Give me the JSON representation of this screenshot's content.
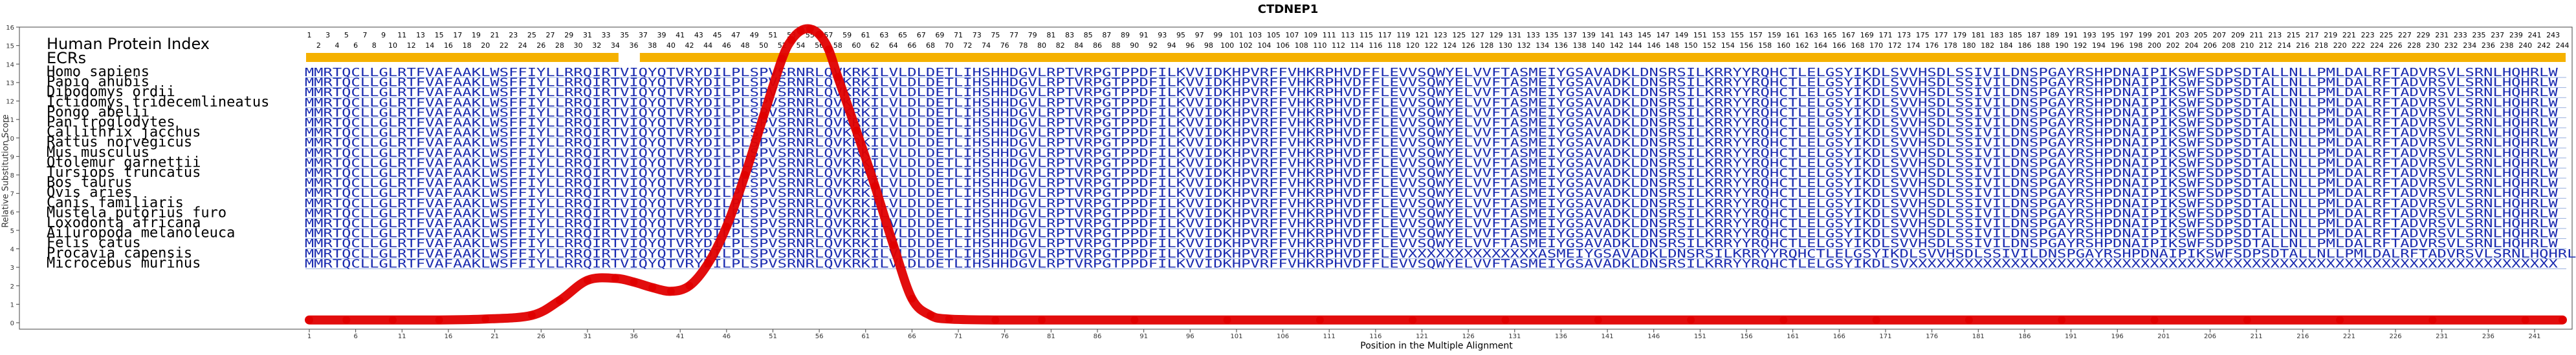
{
  "chart_data": {
    "type": "line",
    "title": "CTDNEP1",
    "xlabel": "Position in the Multiple Alignment",
    "ylabel": "Relative Substitution Score",
    "ylim": [
      0,
      16
    ],
    "xlim": [
      1,
      244
    ],
    "y_ticks": [
      0,
      1,
      2,
      3,
      4,
      5,
      6,
      7,
      8,
      9,
      10,
      11,
      12,
      13,
      14,
      15,
      16
    ],
    "x_ticks": [
      1,
      6,
      11,
      16,
      21,
      26,
      31,
      36,
      41,
      46,
      51,
      56,
      61,
      66,
      71,
      76,
      81,
      86,
      91,
      96,
      101,
      106,
      111,
      116,
      121,
      126,
      131,
      136,
      141,
      146,
      151,
      156,
      161,
      166,
      171,
      176,
      181,
      186,
      191,
      196,
      201,
      206,
      211,
      216,
      221,
      226,
      231,
      236,
      241
    ],
    "series": [
      {
        "x": [
          1,
          5,
          10,
          15,
          20,
          25,
          28,
          31,
          34,
          36,
          38,
          40,
          42,
          44,
          46,
          48,
          50,
          52,
          53,
          54,
          55,
          56,
          57,
          58,
          60,
          62,
          64,
          66,
          68,
          70,
          75,
          80,
          90,
          100,
          110,
          120,
          130,
          140,
          150,
          160,
          170,
          180,
          190,
          200,
          210,
          220,
          230,
          240,
          244
        ],
        "y": [
          0.15,
          0.15,
          0.15,
          0.15,
          0.2,
          0.4,
          1.2,
          2.3,
          2.4,
          2.2,
          1.9,
          1.7,
          2.0,
          3.2,
          5.2,
          8.0,
          11.2,
          14.3,
          15.3,
          15.8,
          15.9,
          15.6,
          14.8,
          13.3,
          10.4,
          7.4,
          4.2,
          1.3,
          0.4,
          0.2,
          0.15,
          0.15,
          0.15,
          0.15,
          0.15,
          0.15,
          0.15,
          0.15,
          0.15,
          0.15,
          0.15,
          0.15,
          0.15,
          0.15,
          0.15,
          0.15,
          0.15,
          0.15,
          0.15
        ]
      }
    ],
    "grid": false
  },
  "alignment": {
    "header_label": "Human Protein Index",
    "ecr_label": "ECRs",
    "human_index_start": 1,
    "human_index_end": 244,
    "ecr_regions": [
      [
        1,
        34
      ],
      [
        37,
        244
      ]
    ],
    "colors": {
      "sequence": "#1a2bb0",
      "curve": "#e00000",
      "ecr": "#f5b100",
      "separator": "#9ab0e0"
    },
    "species": [
      {
        "name": "Homo sapiens",
        "seq": "MMRTQCLLGLRTFVAFAAKLWSFFIYLLRRQIRTVIQYQTVRYDILPLSPVSRNRLQVKRKILVLDLDETLIHSHHDGVLRPTVRPGTPPDFILKVVIDKHPVRFFVHKRPHVDFFLEVVSQWYELVVFTASMEIYGSAVADKLDNSRSILKRRYYRQHCTLELGSYIKDLSVVHSDLSSIVILDNSPGAYRSHPDNAIPIKSWFSDPSDTALLNLLPMLDALRFTADVRSVLSRNLHQHRLW"
      },
      {
        "name": "Papio anubis",
        "seq": "MMRTQCLLGLRTFVAFAAKLWSFFIYLLRRQIRTVIQYQTVRYDILPLSPVSRNRLQVKRKILVLDLDETLIHSHHDGVLRPTVRPGTPPDFILKVVIDKHPVRFFVHKRPHVDFFLEVVSQWYELVVFTASMEIYGSAVADKLDNSRSILKRRYYRQHCTLELGSYIKDLSVVHSDLSSIVILDNSPGAYRSHPDNAIPIKSWFSDPSDTALLNLLPMLDALRFTADVRSVLSRNLHQHRLW"
      },
      {
        "name": "Dipodomys ordii",
        "seq": "MMRTQCLLGLRTFVAFAAKLWSFFIYLLRRQIRTVIQYQTVRYDILPLSPVSRNRLQVKRKILVLDLDETLIHSHHDGVLRPTVRPGTPPDFILKVVIDKHPVRFFVHKRPHVDFFLEVVSQWYELVVFTASMEIYGSAVADKLDNSRSILKRRYYRQHCTLELGSYIKDLSVVHSDLSSIVILDNSPGAYRSHPDNAIPIKSWFSDPSDTALLNLLPMLDALRFTADVRSVLSRNLHQHRLW"
      },
      {
        "name": "Ictidomys tridecemlineatus",
        "seq": "MMRTQCLLGLRTFVAFAAKLWSFFIYLLRRQIRTVIQYQTVRYDILPLSPVSRNRLQVKRKILVLDLDETLIHSHHDGVLRPTVRPGTPPDFILKVVIDKHPVRFFVHKRPHVDFFLEVVSQWYELVVFTASMEIYGSAVADKLDNSRSILKRRYYRQHCTLELGSYIKDLSVVHSDLSSIVILDNSPGAYRSHPDNAIPIKSWFSDPSDTALLNLLPMLDALRFTADVRSVLSRNLHQHRLW"
      },
      {
        "name": "Pongo abelii",
        "seq": "MMRTQCLLGLRTFVAFAAKLWSFFIYLLRRQIRTVIQYQTVRYDILPLSPVSRNRLQVKRKILVLDLDETLIHSHHDGVLRPTVRPGTPPDFILKVVIDKHPVRFFVHKRPHVDFFLEVVSQWYELVVFTASMEIYGSAVADKLDNSRSILKRRYYRQHCTLELGSYIKDLSVVHSDLSSIVILDNSPGAYRSHPDNAIPIKSWFSDPSDTALLNLLPMLDALRFTADVRSVLSRNLHQHRLW"
      },
      {
        "name": "Pan troglodytes",
        "seq": "MMRTQCLLGLRTFVAFAAKLWSFFIYLLRRQIRTVIQYQTVRYDILPLSPVSRNRLQVKRKILVLDLDETLIHSHHDGVLRPTVRPGTPPDFILKVVIDKHPVRFFVHKRPHVDFFLEVVSQWYELVVFTASMEIYGSAVADKLDNSRSILKRRYYRQHCTLELGSYIKDLSVVHSDLSSIVILDNSPGAYRSHPDNAIPIKSWFSDPSDTALLNLLPMLDALRFTADVRSVLSRNLHQHRLW"
      },
      {
        "name": "Callithrix jacchus",
        "seq": "MMRTQCLLGLRTFVAFAAKLWSFFIYLLRRQIRTVIQYQTVRYDILPLSPVSRNRLQVKRKILVLDLDETLIHSHHDGVLRPTVRPGTPPDFILKVVIDKHPVRFFVHKRPHVDFFLEVVSQWYELVVFTASMEIYGSAVADKLDNSRSILKRRYYRQHCTLELGSYIKDLSVVHSDLSSIVILDNSPGAYRSHPDNAIPIKSWFSDPSDTALLNLLPMLDALRFTADVRSVLSRNLHQHRLW"
      },
      {
        "name": "Rattus norvegicus",
        "seq": "MMRTQCLLGLRTFVAFAAKLWSFFIYLLRRQIRTVIQYQTVRYDILPLSPVSRNRLQVKRKILVLDLDETLIHSHHDGVLRPTVRPGTPPDFILKVVIDKHPVRFFVHKRPHVDFFLEVVSQWYELVVFTASMEIYGSAVADKLDNSRSILKRRYYRQHCTLELGSYIKDLSVVHSDLSSIVILDNSPGAYRSHPDNAIPIKSWFSDPSDTALLNLLPMLDALRFTADVRSVLSRNLHQHRLW"
      },
      {
        "name": "Mus musculus",
        "seq": "MMRTQCLLGLRTFVAFAAKLWSFFIYLLRRQIRTVIQYQTVRYDILPLSPVSRNRLQVKRKILVLDLDETLIHSHHDGVLRPTVRPGTPPDFILKVVIDKHPVRFFVHKRPHVDFFLEVVSQWYELVVFTASMEIYGSAVADKLDNSRSILKRRYYRQHCTLELGSYIKDLSVVHSDLSSIVILDNSPGAYRSHPDNAIPIKSWFSDPSDTALLNLLPMLDALRFTADVRSVLSRNLHQHRLW"
      },
      {
        "name": "Otolemur garnettii",
        "seq": "MMRTQCLLGLRTFVAFAAKLWSFFIYLLRRQIRTVIQYQTVRYDILPLSPVSRNRLQVKRKILVLDLDETLIHSHHDGVLRPTVRPGTPPDFILKVVIDKHPVRFFVHKRPHVDFFLEVVSQWYELVVFTASMEIYGSAVADKLDNSRSILKRRYYRQHCTLELGSYIKDLSVVHSDLSSIVILDNSPGAYRSHPDNAIPIKSWFSDPSDTALLNLLPMLDALRFTADVRSVLSRNLHQHRLW"
      },
      {
        "name": "Tursiops truncatus",
        "seq": "MMRTQCLLGLRTFVAFAAKLWSFFIYLLRRQIRTVIQYQTVRYDILPLSPVSRNRLQVKRKILVLDLDETLIHSHHDGVLRPTVRPGTPPDFILKVVIDKHPVRFFVHKRPHVDFFLEVVSQWYELVVFTASMEIYGSAVADKLDNSRSILKRRYYRQHCTLELGSYIKDLSVVHSDLSSIVILDNSPGAYRSHPDNAIPIKSWFSDPSDTALLNLLPMLDALRFTADVRSVLSRNLHQHRLW"
      },
      {
        "name": "Bos taurus",
        "seq": "MMRTQCLLGLRTFVAFAAKLWSFFIYLLRRQIRTVIQYQTVRYDILPLSPVSRNRLQVKRKILVLDLDETLIHSHHDGVLRPTVRPGTPPDFILKVVIDKHPVRFFVHKRPHVDFFLEVVSQWYELVVFTASMEIYGSAVADKLDNSRSILKRRYYRQHCTLELGSYIKDLSVVHSDLSSIVILDNSPGAYRSHPDNAIPIKSWFSDPSDTALLNLLPMLDALRFTADVRSVLSRNLHQHRLW"
      },
      {
        "name": "Ovis aries",
        "seq": "MMRTQCLLGLRTFVAFAAKLWSFFIYLLRRQIRTVIQYQTVRYDILPLSPVSRNRLQVKRKILVLDLDETLIHSHHDGVLRPTVRPGTPPDFILKVVIDKHPVRFFVHKRPHVDFFLEVVSQWYELVVFTASMEIYGSAVADKLDNSRSILKRRYYRQHCTLELGSYIKDLSVVHSDLSSIVILDNSPGAYRSHPDNAIPIKSWFSDPSDTALLNLLPMLDALRFTADVRSVLSRNLHQHRLW"
      },
      {
        "name": "Canis familiaris",
        "seq": "MMRTQCLLGLRTFVAFAAKLWSFFIYLLRRQIRTVIQYQTVRYDILPLSPVSRNRLQVKRKILVLDLDETLIHSHHDGVLRPTVRPGTPPDFILKVVIDKHPVRFFVHKRPHVDFFLEVVSQWYELVVFTASMEIYGSAVADKLDNSRSILKRRYYRQHCTLELGSYIKDLSVVHSDLSSIVILDNSPGAYRSHPDNAIPIKSWFSDPSDTALLNLLPMLDALRFTADVRSVLSRNLHQHRLW"
      },
      {
        "name": "Mustela putorius furo",
        "seq": "MMRTQCLLGLRTFVAFAAKLWSFFIYLLRRQIRTVIQYQTVRYDILPLSPVSRNRLQVKRKILVLDLDETLIHSHHDGVLRPTVRPGTPPDFILKVVIDKHPVRFFVHKRPHVDFFLEVVSQWYELVVFTASMEIYGSAVADKLDNSRSILKRRYYRQHCTLELGSYIKDLSVVHSDLSSIVILDNSPGAYRSHPDNAIPIKSWFSDPSDTALLNLLPMLDALRFTADVRSVLSRNLHQHRLW"
      },
      {
        "name": "Loxodonta africana",
        "seq": "MMRTQCLLGLRTFVAFAAKLWSFFIYLLRRQIRTVIQYQTVRYDILPLSPVSRNRLQVKRKILVLDLDETLIHSHHDGVLRPTVRPGTPPDFILKVVIDKHPVRFFVHKRPHVDFFLEVVSQWYELVVFTASMEIYGSAVADKLDNSRSILKRRYYRQHCTLELGSYIKDLSVVHSDLSSIVILDNSPGAYRSHPDNAIPIKSWFSDPSDTALLNLLPMLDALRFTADVRSVLSRNLHQHRLW"
      },
      {
        "name": "Ailuropoda melanoleuca",
        "seq": "MMRTQCLLGLRTFVAFAAKLWSFFIYLLRRQIRTVIQYQTVRYDILPLSPVSRNRLQVKRKILVLDLDETLIHSHHDGVLRPTVRPGTPPDFILKVVIDKHPVRFFVHKRPHVDFFLEVVSQWYELVVFTASMEIYGSAVADKLDNSRSILKRRYYRQHCTLELGSYIKDLSVVHSDLSSIVILDNSPGAYRSHPDNAIPIKSWFSDPSDTALLNLLPMLDALRFTADVRSVLSRNLHQHRLW"
      },
      {
        "name": "Felis catus",
        "seq": "MMRTQCLLGLRTFVAFAAKLWSFFIYLLRRQIRTVIQYQTVRYDILPLSPVSRNRLQVKRKILVLDLDETLIHSHHDGVLRPTVRPGTPPDFILKVVIDKHPVRFFVHKRPHVDFFLEVVSQWYELVVFTASMEIYGSAVADKLDNSRSILKRRYYRQHCTLELGSYIKDLSVVHSDLSSIVILDNSPGAYRSHPDNAIPIKSWFSDPSDTALLNLLPMLDALRFTADVRSVLSRNLHQHRLW"
      },
      {
        "name": "Procavia capensis",
        "seq": "MMRTQCLLGLRTFVAFAAKLWSFFIYLLRRQIRTVIQYQTVRYDILPLSPVSRNRLQVKRKILVLDLDETLIHSHHDGVLRPTVRPGTPPDFILKVVIDKHPVRFFVHKRPHVDFFLEVXXXXXXXXXXXXXXASMEIYGSAVADKLDNSRSILKRRYYRQHCTLELGSYIKDLSVVHSDLSSIVILDNSPGAYRSHPDNAIPIKSWFSDPSDTALLNLLPMLDALRFTADVRSVLSRNLHQHRLW"
      },
      {
        "name": "Microcebus murinus",
        "seq": "MMRTQCLLGLRTFVAFAAKLWSFFIYLLRRQIRTVIQYQTVRYDILPLSPVSRNRLQVKRKILVLDLDETLIHSHHDGVLRPTVRPGTPPDFILKVVIDKHPVRFFVHKRPHVDFFLEVVSQWYELVVFTASMEIYGSAVADKLDNSRSILKRRYYRQHCTLELGSYIKDLSVXXXXXXXXXXXXXXXXXXXXXXXXXXXXXXXXXXXXXXXXXXXXXXXXXXXXXXXXXXXXXXXXXXXXXX"
      }
    ]
  }
}
